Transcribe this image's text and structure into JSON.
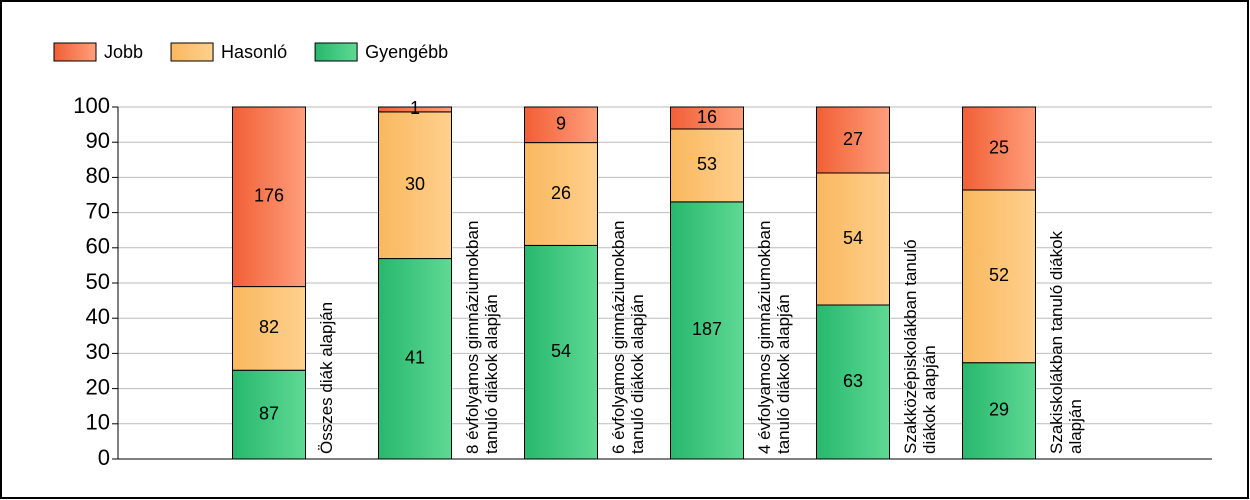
{
  "chart_data": {
    "type": "bar",
    "stacked": "percent",
    "categories": [
      [
        "Összes diák alapján"
      ],
      [
        "8 évfolyamos gimnáziumokban",
        "tanuló diákok alapján"
      ],
      [
        "6 évfolyamos gimnáziumokban",
        "tanuló diákok alapján"
      ],
      [
        "4 évfolyamos gimnáziumokban",
        "tanuló diákok alapján"
      ],
      [
        "Szakközépiskolákban tanuló",
        "diákok alapján"
      ],
      [
        "Szakiskolákban tanuló diákok",
        "alapján"
      ]
    ],
    "series": [
      {
        "name": "Gyengébb",
        "color": [
          "#27b86d",
          "#5fd994"
        ],
        "values": [
          87,
          41,
          54,
          187,
          63,
          29
        ]
      },
      {
        "name": "Hasonló",
        "color": [
          "#f9b85e",
          "#ffd08e"
        ],
        "values": [
          82,
          30,
          26,
          53,
          54,
          52
        ]
      },
      {
        "name": "Jobb",
        "color": [
          "#f15f35",
          "#ff9f7c"
        ],
        "values": [
          176,
          1,
          9,
          16,
          27,
          25
        ]
      }
    ],
    "legend_order": [
      2,
      1,
      0
    ],
    "ylim": [
      0,
      100
    ],
    "yticks": [
      0,
      10,
      20,
      30,
      40,
      50,
      60,
      70,
      80,
      90,
      100
    ],
    "grid": true
  }
}
